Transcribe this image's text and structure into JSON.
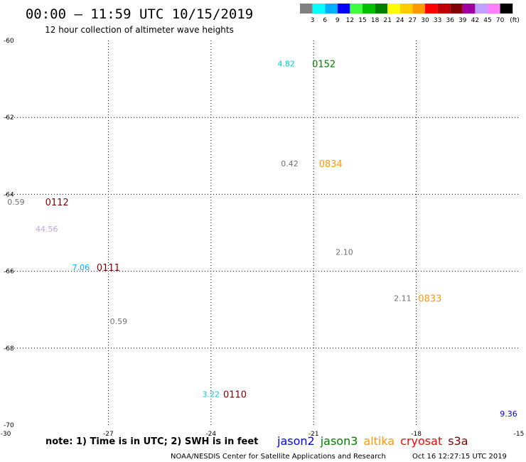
{
  "header": {
    "title": "00:00 – 11:59 UTC 10/15/2019",
    "subtitle": "12 hour collection of altimeter wave heights"
  },
  "colorbar": {
    "unit": "(ft)",
    "swatches": [
      {
        "label": "3",
        "color": "#808080"
      },
      {
        "label": "6",
        "color": "#00ffff"
      },
      {
        "label": "9",
        "color": "#00b0ff"
      },
      {
        "label": "12",
        "color": "#0000ff"
      },
      {
        "label": "15",
        "color": "#40ff40"
      },
      {
        "label": "18",
        "color": "#00c000"
      },
      {
        "label": "21",
        "color": "#008000"
      },
      {
        "label": "24",
        "color": "#ffff00"
      },
      {
        "label": "27",
        "color": "#ffcc00"
      },
      {
        "label": "30",
        "color": "#ff9900"
      },
      {
        "label": "33",
        "color": "#ff0000"
      },
      {
        "label": "36",
        "color": "#c00000"
      },
      {
        "label": "39",
        "color": "#800000"
      },
      {
        "label": "42",
        "color": "#a000a0"
      },
      {
        "label": "45",
        "color": "#c0a0ff"
      },
      {
        "label": "70",
        "color": "#ff80ff"
      },
      {
        "label": "",
        "color": "#000000"
      }
    ]
  },
  "chart_data": {
    "type": "scatter",
    "xlim": [
      -30,
      -15
    ],
    "ylim": [
      -70,
      -60
    ],
    "x_ticks": [
      -30,
      -27,
      -24,
      -21,
      -18,
      -15
    ],
    "y_ticks": [
      -60,
      -62,
      -64,
      -66,
      -68,
      -70
    ],
    "grid": true,
    "wave_heights": [
      {
        "lon": -21.8,
        "lat": -60.6,
        "value": "4.82",
        "color": "#00cccc"
      },
      {
        "lon": -21.7,
        "lat": -63.2,
        "value": "0.42",
        "color": "#707070"
      },
      {
        "lon": -29.7,
        "lat": -64.2,
        "value": "0.59",
        "color": "#707070"
      },
      {
        "lon": -28.8,
        "lat": -64.9,
        "value": "44.56",
        "color": "#c0a0ff"
      },
      {
        "lon": -20.1,
        "lat": -65.5,
        "value": "2.10",
        "color": "#707070"
      },
      {
        "lon": -27.8,
        "lat": -65.9,
        "value": "7.06",
        "color": "#00b0ff"
      },
      {
        "lon": -18.4,
        "lat": -66.7,
        "value": "2.11",
        "color": "#707070"
      },
      {
        "lon": -26.7,
        "lat": -67.3,
        "value": "0.59",
        "color": "#707070"
      },
      {
        "lon": -24.0,
        "lat": -69.2,
        "value": "3.22",
        "color": "#00cccc"
      },
      {
        "lon": -15.3,
        "lat": -69.7,
        "value": "9.36",
        "color": "#0000cc"
      }
    ],
    "pass_times": [
      {
        "lon": -20.7,
        "lat": -60.6,
        "value": "0152",
        "color": "#008000"
      },
      {
        "lon": -20.5,
        "lat": -63.2,
        "value": "0834",
        "color": "#ff9900"
      },
      {
        "lon": -28.5,
        "lat": -64.2,
        "value": "0112",
        "color": "#800000"
      },
      {
        "lon": -27.0,
        "lat": -65.9,
        "value": "0111",
        "color": "#800000"
      },
      {
        "lon": -17.6,
        "lat": -66.7,
        "value": "0833",
        "color": "#ff9900"
      },
      {
        "lon": -23.3,
        "lat": -69.2,
        "value": "0110",
        "color": "#800000"
      }
    ]
  },
  "footer": {
    "note": "note: 1) Time is in UTC; 2) SWH is in feet",
    "satellites": [
      {
        "name": "jason2",
        "color": "#0000ff"
      },
      {
        "name": "jason3",
        "color": "#008000"
      },
      {
        "name": "altika",
        "color": "#ff9900"
      },
      {
        "name": "cryosat",
        "color": "#ff0000"
      },
      {
        "name": "s3a",
        "color": "#800000"
      }
    ],
    "credit": "NOAA/NESDIS Center for Satellite Applications and Research",
    "timestamp": "Oct 16 12:27:15 UTC 2019"
  }
}
